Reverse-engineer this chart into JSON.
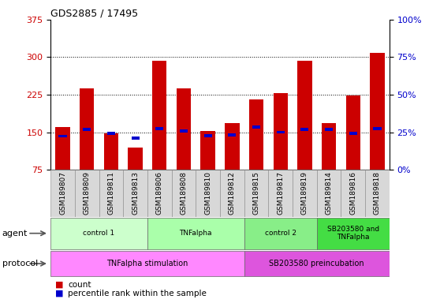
{
  "title": "GDS2885 / 17495",
  "samples": [
    "GSM189807",
    "GSM189809",
    "GSM189811",
    "GSM189813",
    "GSM189806",
    "GSM189808",
    "GSM189810",
    "GSM189812",
    "GSM189815",
    "GSM189817",
    "GSM189819",
    "GSM189814",
    "GSM189816",
    "GSM189818"
  ],
  "red_values": [
    160,
    238,
    148,
    120,
    293,
    238,
    152,
    168,
    215,
    228,
    293,
    168,
    223,
    308
  ],
  "blue_values": [
    142,
    155,
    148,
    138,
    157,
    152,
    143,
    145,
    160,
    150,
    155,
    155,
    148,
    157
  ],
  "y_min": 75,
  "y_max": 375,
  "y_ticks": [
    75,
    150,
    225,
    300,
    375
  ],
  "y_right_ticks": [
    0,
    25,
    50,
    75,
    100
  ],
  "y_right_labels": [
    "0%",
    "25%",
    "50%",
    "75%",
    "100%"
  ],
  "agent_groups": [
    {
      "label": "control 1",
      "start": 0,
      "end": 4,
      "color": "#ccffcc"
    },
    {
      "label": "TNFalpha",
      "start": 4,
      "end": 8,
      "color": "#aaffaa"
    },
    {
      "label": "control 2",
      "start": 8,
      "end": 11,
      "color": "#88ee88"
    },
    {
      "label": "SB203580 and\nTNFalpha",
      "start": 11,
      "end": 14,
      "color": "#44dd44"
    }
  ],
  "protocol_groups": [
    {
      "label": "TNFalpha stimulation",
      "start": 0,
      "end": 8,
      "color": "#ff88ff"
    },
    {
      "label": "SB203580 preincubation",
      "start": 8,
      "end": 14,
      "color": "#dd55dd"
    }
  ],
  "bar_color": "#cc0000",
  "blue_color": "#0000cc",
  "tick_label_color": "#cc0000",
  "right_tick_color": "#0000cc",
  "grid_color": "#000000",
  "background_color": "#ffffff",
  "bar_width": 0.6
}
